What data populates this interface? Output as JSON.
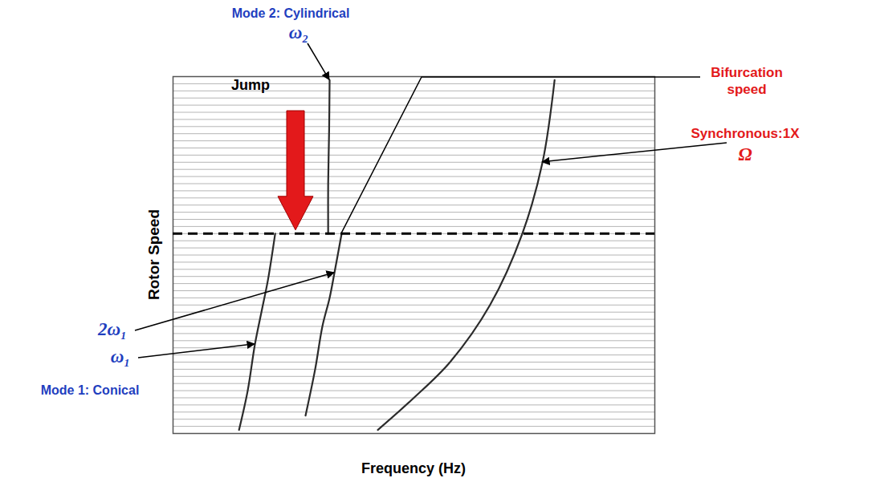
{
  "chart_data": {
    "type": "waterfall",
    "x_label": "Frequency (Hz)",
    "y_label": "Rotor Speed",
    "xlim": [
      0,
      100
    ],
    "ylim": [
      0,
      100
    ],
    "tick_labels": false,
    "color": "#2b2b2b",
    "speeds": [
      0,
      2,
      4,
      6,
      8,
      10,
      12,
      14,
      16,
      18,
      20,
      22,
      24,
      26,
      28,
      30,
      32,
      34,
      36,
      38,
      40,
      42,
      44,
      46,
      48,
      50,
      52,
      54,
      56,
      58,
      60,
      62,
      64,
      66,
      68,
      70,
      72,
      74,
      76,
      78,
      80,
      82,
      84,
      86,
      88,
      90,
      92,
      94,
      96,
      98,
      100
    ],
    "bifurcation_speed": 56,
    "series": [
      {
        "name": "ω₁",
        "color": "#1f3fbf",
        "x": [
          13.7,
          15.5,
          17.0,
          18.5,
          19.7,
          21.2
        ],
        "values": [
          1,
          12,
          25,
          35,
          43,
          56
        ]
      },
      {
        "name": "2ω₁",
        "color": "#1f3fbf",
        "x": [
          27.5,
          29.5,
          31.0,
          32.5,
          33.5,
          35.0
        ],
        "values": [
          5,
          18,
          30,
          38,
          45,
          56
        ]
      },
      {
        "name": "Ω",
        "color": "#e3191b",
        "x": [
          42.5,
          50.0,
          57.5,
          65.8,
          72.5,
          76.7,
          79.2
        ],
        "values": [
          1,
          10,
          20,
          36,
          56,
          76,
          99
        ]
      },
      {
        "name": "ω₂",
        "color": "#1f3fbf",
        "x": [
          32.2,
          32.2,
          32.4,
          32.5
        ],
        "values": [
          56,
          70,
          85,
          99
        ]
      }
    ],
    "annotations": [
      {
        "text": "Mode 1: Conical",
        "color": "#1f3fbf"
      },
      {
        "text": "Mode 2: Cylindrical",
        "color": "#1f3fbf"
      },
      {
        "text": "Jump",
        "color": "#000000"
      },
      {
        "text": "Bifurcation speed",
        "color": "#e3191b"
      },
      {
        "text": "Synchronous:1X",
        "color": "#e3191b"
      }
    ]
  }
}
